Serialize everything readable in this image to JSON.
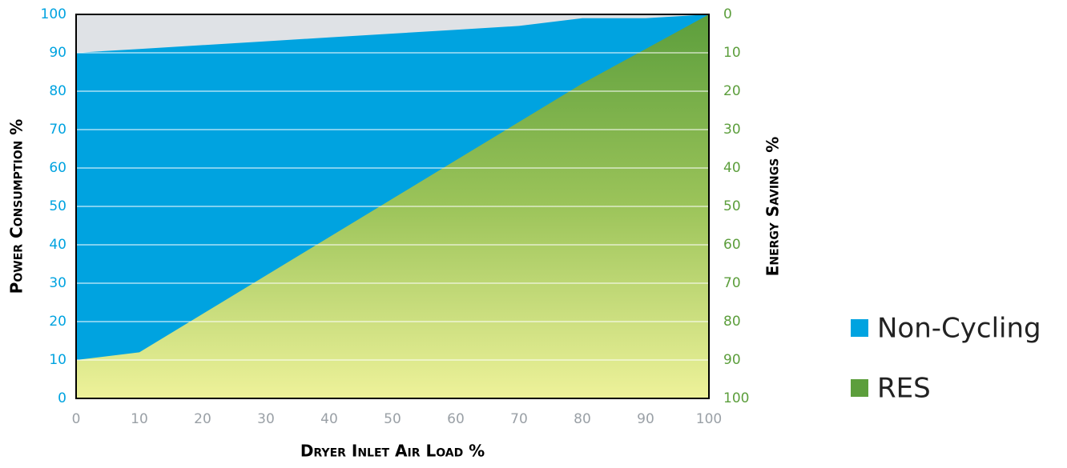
{
  "chart_data": {
    "type": "area",
    "x": [
      0,
      10,
      20,
      30,
      40,
      50,
      60,
      70,
      80,
      90,
      100
    ],
    "series": [
      {
        "name": "Non-Cycling",
        "color": "#00a3e0",
        "values": [
          90,
          91,
          92,
          93,
          94,
          95,
          96,
          97,
          99,
          99,
          100
        ]
      },
      {
        "name": "RES",
        "color": "#5c9e3c",
        "values": [
          10,
          12,
          22,
          32,
          42,
          52,
          62,
          72,
          82,
          91,
          100
        ]
      }
    ],
    "xlim": [
      0,
      100
    ],
    "xticks": [
      0,
      10,
      20,
      30,
      40,
      50,
      60,
      70,
      80,
      90,
      100
    ],
    "ylim": [
      0,
      100
    ],
    "yticks": [
      0,
      10,
      20,
      30,
      40,
      50,
      60,
      70,
      80,
      90,
      100
    ],
    "y2lim": [
      100,
      0
    ],
    "y2ticks": [
      0,
      10,
      20,
      30,
      40,
      50,
      60,
      70,
      80,
      90,
      100
    ],
    "xlabel": "Dryer Inlet Air Load %",
    "ylabel": "Power Consumption %",
    "y2label": "Energy Savings %",
    "grid": true,
    "legend": "right"
  }
}
